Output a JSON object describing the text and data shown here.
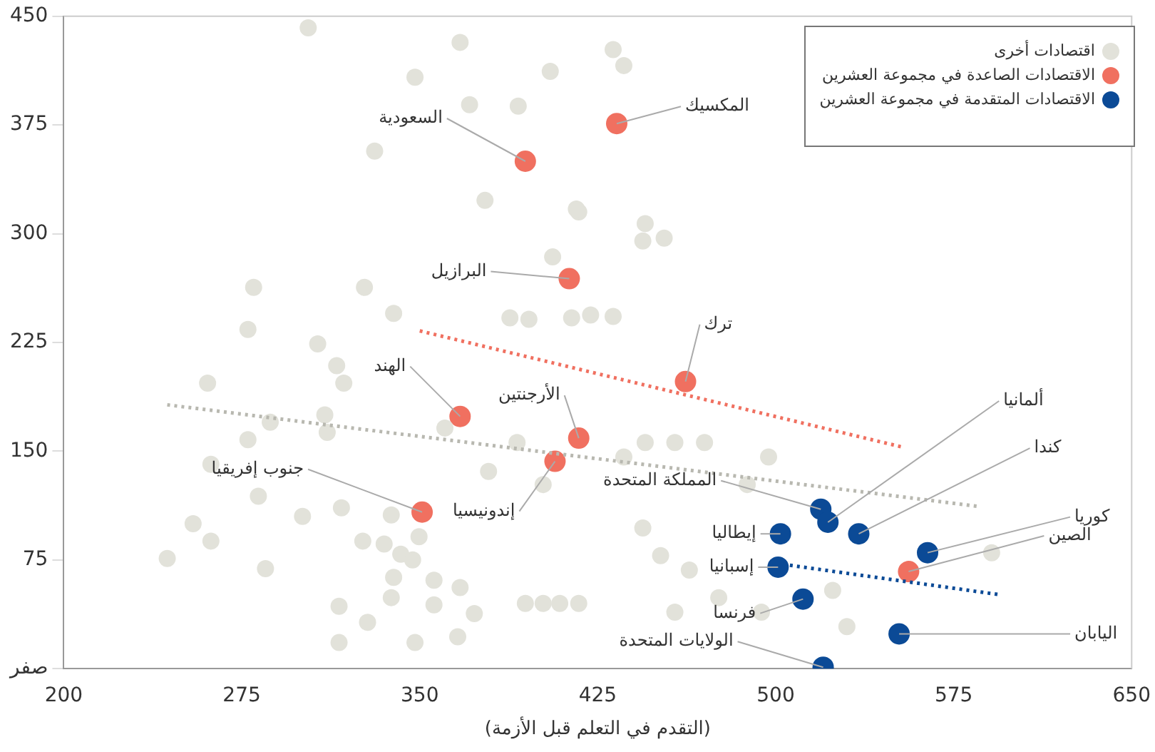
{
  "chart_data": {
    "type": "scatter",
    "xlabel": "(التقدم في التعلم قبل الأزمة)",
    "xlim": [
      200,
      650
    ],
    "xticks": [
      200,
      275,
      350,
      425,
      500,
      575,
      650
    ],
    "ylim": [
      0,
      450
    ],
    "yticks": [
      {
        "value": 0,
        "label": "صفر"
      },
      75,
      150,
      225,
      300,
      375,
      450
    ],
    "grid": false,
    "legend": "top right",
    "marker": "circle",
    "series": [
      {
        "name": "اقتصادات أخرى",
        "color": "#e2e2da",
        "x": [
          303,
          367,
          348,
          371,
          391.5,
          405,
          331,
          377.5,
          417,
          406,
          280,
          326.7,
          339,
          277.6,
          307,
          315,
          388,
          396,
          414,
          431.5,
          436,
          416,
          445,
          444,
          453,
          422,
          431.5,
          260.6,
          318,
          287,
          310,
          311,
          262,
          277.6,
          282,
          254.5,
          262,
          243.6,
          285,
          300.6,
          317,
          338,
          349.7,
          335,
          342,
          339,
          347,
          326,
          356,
          316,
          338,
          328,
          356,
          367,
          373,
          316,
          348,
          366,
          394.5,
          402,
          409,
          417,
          379,
          402,
          391,
          360.6,
          436,
          445,
          457.5,
          470,
          497,
          488,
          444,
          451.5,
          463.6,
          457.5,
          476,
          494,
          524,
          530,
          591
        ],
        "values": [
          442,
          432,
          408,
          389,
          388,
          412,
          357,
          323,
          315,
          284,
          263,
          263,
          245,
          234,
          224,
          209,
          242,
          241,
          242,
          427,
          416,
          317,
          307,
          295,
          297,
          244,
          243,
          197,
          197,
          170,
          175,
          163,
          141,
          158,
          119,
          100,
          88,
          76,
          69,
          105,
          111,
          106,
          91,
          86,
          79,
          63,
          75,
          88,
          61,
          43,
          49,
          32,
          44,
          56,
          38,
          18,
          18,
          22,
          45,
          45,
          45,
          45,
          136,
          127,
          156,
          166,
          146,
          156,
          156,
          156,
          146,
          127,
          97,
          78,
          68,
          39,
          49,
          39,
          54,
          29,
          80
        ]
      },
      {
        "name": "الاقتصادات الصاعدة في مجموعة العشرين",
        "color": "#f07060",
        "x": [
          433,
          394.5,
          413,
          462,
          367,
          417,
          407,
          351,
          556
        ],
        "values": [
          376,
          350,
          269,
          198,
          174,
          159,
          143,
          108,
          67
        ]
      },
      {
        "name": "الاقتصادات المتقدمة في مجموعة العشرين",
        "color": "#0b4a96",
        "x": [
          519,
          522,
          502,
          535,
          564,
          501,
          511.5,
          552,
          520
        ],
        "values": [
          110,
          101,
          93,
          93,
          80,
          70,
          48,
          24,
          1
        ]
      },
      {
        "type": "line",
        "color": "#f07060",
        "line_style": "dotted",
        "marker": "none",
        "x": [
          350,
          553
        ],
        "values": [
          233,
          153
        ]
      },
      {
        "type": "line",
        "color": "#b8b8b0",
        "line_style": "dotted",
        "marker": "none",
        "x": [
          243.6,
          585
        ],
        "values": [
          182,
          112
        ]
      },
      {
        "type": "line",
        "color": "#0b4a96",
        "line_style": "dotted",
        "marker": "none",
        "x": [
          503,
          594.5
        ],
        "values": [
          72,
          51
        ]
      }
    ],
    "annotations": [
      {
        "text": "المكسيك",
        "x": 433,
        "y": 376
      },
      {
        "text": "السعودية",
        "x": 394.5,
        "y": 350
      },
      {
        "text": "البرازيل",
        "x": 413,
        "y": 269
      },
      {
        "text": "ترك",
        "x": 462,
        "y": 198
      },
      {
        "text": "الهند",
        "x": 367,
        "y": 174
      },
      {
        "text": "الأرجنتين",
        "x": 417,
        "y": 159
      },
      {
        "text": "إندونيسيا",
        "x": 407,
        "y": 143
      },
      {
        "text": "جنوب إفريقيا",
        "x": 351,
        "y": 108
      },
      {
        "text": "الصين",
        "x": 556,
        "y": 67
      },
      {
        "text": "ألمانيا",
        "x": 522,
        "y": 101
      },
      {
        "text": "كندا",
        "x": 535,
        "y": 93
      },
      {
        "text": "كوريا",
        "x": 564,
        "y": 80
      },
      {
        "text": "المملكة المتحدة",
        "x": 519,
        "y": 110
      },
      {
        "text": "إيطاليا",
        "x": 502,
        "y": 93
      },
      {
        "text": "إسبانيا",
        "x": 501,
        "y": 70
      },
      {
        "text": "فرنسا",
        "x": 511.5,
        "y": 48
      },
      {
        "text": "اليابان",
        "x": 552,
        "y": 24
      },
      {
        "text": "الولايات المتحدة",
        "x": 520,
        "y": 1
      }
    ]
  }
}
